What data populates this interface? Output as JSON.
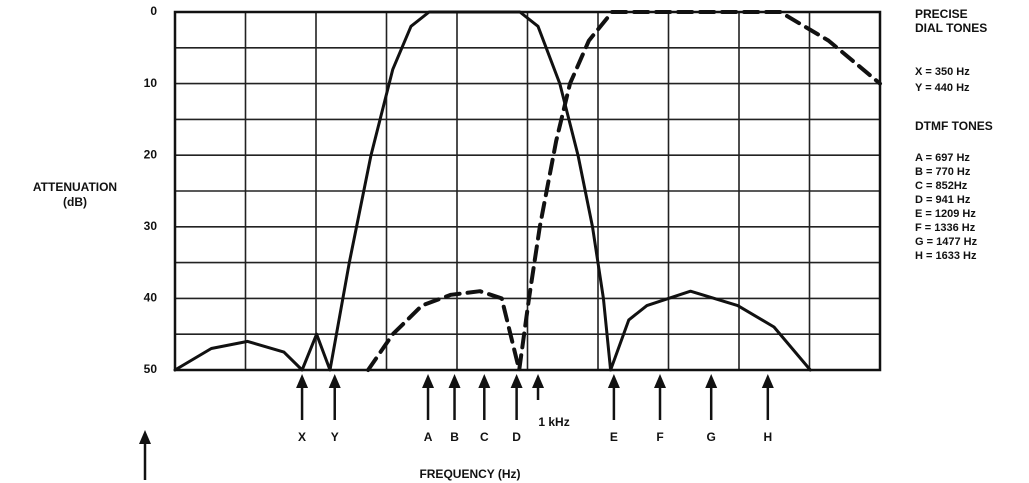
{
  "chart_data": {
    "type": "line",
    "y_label": [
      "ATTENUATION",
      "(dB)"
    ],
    "x_label": "FREQUENCY (Hz)",
    "xlim": [
      0,
      1942
    ],
    "ylim": [
      50,
      0
    ],
    "yticks": [
      0,
      10,
      20,
      30,
      40,
      50
    ],
    "grid": true,
    "series": [
      {
        "color": "#111111",
        "style": "solid",
        "x": [
          0,
          100,
          200,
          300,
          350,
          390,
          427,
          480,
          540,
          600,
          650,
          700,
          800,
          900,
          950,
          1000,
          1060,
          1110,
          1150,
          1180,
          1200,
          1250,
          1300,
          1420,
          1550,
          1650,
          1750
        ],
        "y": [
          50,
          47,
          46,
          47.5,
          50,
          45,
          50,
          35,
          20,
          8,
          2,
          0,
          0,
          0,
          0,
          2,
          10,
          20,
          30,
          40,
          50,
          43,
          41,
          39,
          41,
          44,
          50
        ]
      },
      {
        "color": "#111111",
        "style": "dashed",
        "x": [
          532,
          600,
          680,
          760,
          840,
          900,
          948,
          975,
          1005,
          1050,
          1088,
          1140,
          1204,
          1400,
          1667,
          1800,
          1942
        ],
        "y": [
          50,
          45,
          41,
          39.5,
          39,
          40,
          50,
          40,
          30,
          18,
          10,
          4,
          0,
          0,
          0,
          4,
          10
        ]
      }
    ],
    "markers": [
      {
        "label": "X",
        "x": 350
      },
      {
        "label": "Y",
        "x": 440
      },
      {
        "label": "A",
        "x": 697
      },
      {
        "label": "B",
        "x": 770
      },
      {
        "label": "C",
        "x": 852
      },
      {
        "label": "D",
        "x": 941
      },
      {
        "label": "1 kHz",
        "x": 1000
      },
      {
        "label": "E",
        "x": 1209
      },
      {
        "label": "F",
        "x": 1336
      },
      {
        "label": "G",
        "x": 1477
      },
      {
        "label": "H",
        "x": 1633
      }
    ],
    "legend": {
      "dial_title": [
        "PRECISE",
        "DIAL TONES"
      ],
      "dial_items": [
        "X = 350 Hz",
        "Y = 440 Hz"
      ],
      "dtmf_title": "DTMF TONES",
      "dtmf_items": [
        "A = 697 Hz",
        "B = 770 Hz",
        "C = 852Hz",
        "D = 941 Hz",
        "E = 1209 Hz",
        "F = 1336 Hz",
        "G = 1477 Hz",
        "H = 1633 Hz"
      ]
    }
  }
}
